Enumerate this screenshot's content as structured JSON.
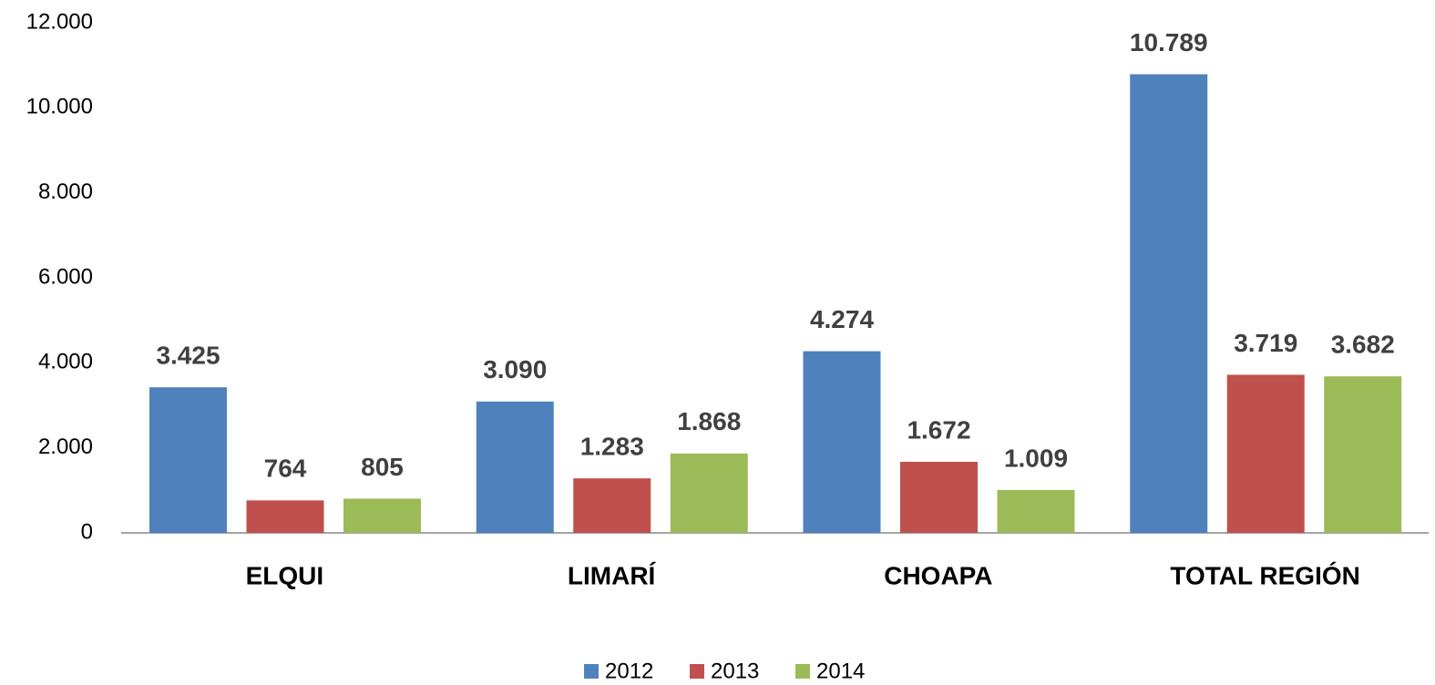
{
  "chart_data": {
    "type": "bar",
    "categories": [
      "ELQUI",
      "LIMARÍ",
      "CHOAPA",
      "TOTAL REGIÓN"
    ],
    "series": [
      {
        "name": "2012",
        "color": "#4f81bd",
        "values": [
          3425,
          3090,
          4274,
          10789
        ],
        "value_labels": [
          "3.425",
          "3.090",
          "4.274",
          "10.789"
        ]
      },
      {
        "name": "2013",
        "color": "#c0504d",
        "values": [
          764,
          1283,
          1672,
          3719
        ],
        "value_labels": [
          "764",
          "1.283",
          "1.672",
          "3.719"
        ]
      },
      {
        "name": "2014",
        "color": "#9bbb59",
        "values": [
          805,
          1868,
          1009,
          3682
        ],
        "value_labels": [
          "805",
          "1.868",
          "1.009",
          "3.682"
        ]
      }
    ],
    "ylim": [
      0,
      12000
    ],
    "yticks": [
      0,
      {
        "value": 2000,
        "label": "2.000"
      },
      {
        "value": 4000,
        "label": "4.000"
      },
      {
        "value": 6000,
        "label": "6.000"
      },
      {
        "value": 8000,
        "label": "8.000"
      },
      {
        "value": 10000,
        "label": "10.000"
      },
      {
        "value": 12000,
        "label": "12.000"
      }
    ],
    "grid": false,
    "legend": "bottom"
  }
}
